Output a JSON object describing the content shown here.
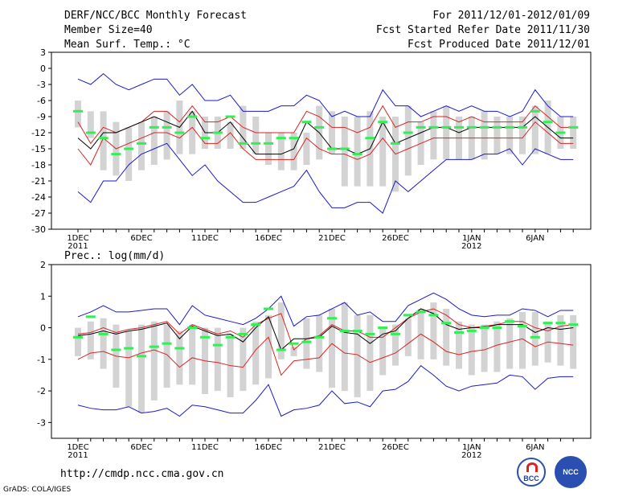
{
  "header": {
    "title": "DERF/NCC/BCC Monthly Forecast",
    "member_size": "Member Size=40",
    "variable": "Mean Surf. Temp.: °C",
    "fcst_period": "For 2011/12/01-2012/01/09",
    "fcst_start": "Fcst Started Refer Date 2011/11/30",
    "fcst_produced": "Fcst Produced Date 2011/12/01"
  },
  "footer": {
    "url": "http://cmdp.ncc.cma.gov.cn",
    "credit": "GrADS: COLA/IGES",
    "logo_bcc": "BCC",
    "logo_ncc": "NCC"
  },
  "colors": {
    "grid": "#000000",
    "box": "#d3d3d3",
    "green": "#33ee55",
    "mean": "#000000",
    "std": "#dd2222",
    "extreme": "#1a1acc"
  },
  "chart_data": [
    {
      "type": "box-ensemble",
      "panel": "temperature",
      "title": "Mean Surf. Temp.: °C",
      "ylim": [
        -30,
        3
      ],
      "yticks": [
        3,
        0,
        -3,
        -6,
        -9,
        -12,
        -15,
        -18,
        -21,
        -24,
        -27,
        -30
      ],
      "ytick_labels": [
        "3",
        "0",
        "-3",
        "-6",
        "-9",
        "-12",
        "-15",
        "-18",
        "-21",
        "-24",
        "-27",
        "-30"
      ],
      "x_tick_labels": [
        {
          "day": 1,
          "label": "1DEC",
          "sub": "2011"
        },
        {
          "day": 6,
          "label": "6DEC",
          "sub": ""
        },
        {
          "day": 11,
          "label": "11DEC",
          "sub": ""
        },
        {
          "day": 16,
          "label": "16DEC",
          "sub": ""
        },
        {
          "day": 21,
          "label": "21DEC",
          "sub": ""
        },
        {
          "day": 26,
          "label": "26DEC",
          "sub": ""
        },
        {
          "day": 32,
          "label": "1JAN",
          "sub": "2012"
        },
        {
          "day": 37,
          "label": "6JAN",
          "sub": ""
        }
      ],
      "ndays": 40,
      "box_low": [
        -11,
        -13,
        -19,
        -20,
        -21,
        -19,
        -18,
        -17,
        -16,
        -16,
        -15,
        -15,
        -15,
        -15,
        -16,
        -18,
        -19,
        -19,
        -18,
        -17,
        -16,
        -22,
        -22,
        -22,
        -22,
        -23,
        -20,
        -18,
        -17,
        -17,
        -17,
        -17,
        -17,
        -16,
        -16,
        -16,
        -16,
        -16,
        -15,
        -15
      ],
      "box_high": [
        -6,
        -8,
        -8,
        -10,
        -11,
        -10,
        -9,
        -8,
        -6,
        -8,
        -9,
        -9,
        -10,
        -7,
        -9,
        -12,
        -12,
        -12,
        -12,
        -7,
        -8,
        -9,
        -9,
        -8,
        -9,
        -9,
        -7,
        -10,
        -8,
        -7,
        -9,
        -9,
        -8,
        -9,
        -9,
        -9,
        -7,
        -6,
        -9,
        -9
      ],
      "green": [
        -8,
        -12,
        -13,
        -16,
        -15,
        -14,
        -11,
        -11,
        -12,
        -9,
        -13,
        -12,
        -9,
        -14,
        -14,
        -14,
        -13,
        -13,
        -10,
        -11,
        -15,
        -15,
        -16,
        -13,
        -10,
        -14,
        -12,
        -11,
        -11,
        -11,
        -11,
        -11,
        -11,
        -11,
        -11,
        -11,
        -8,
        -10,
        -12,
        -11
      ],
      "series": [
        {
          "name": "max",
          "role": "extreme",
          "values": [
            -2,
            -3,
            -1,
            -3,
            -4,
            -3,
            -2,
            -2,
            -5,
            -3,
            -6,
            -6,
            -5,
            -8,
            -8,
            -8,
            -7,
            -7,
            -5,
            -6,
            -9,
            -8,
            -9,
            -9,
            -4,
            -7,
            -7,
            -9,
            -8,
            -7,
            -8,
            -7,
            -8,
            -8,
            -9,
            -8,
            -4,
            -7,
            -9,
            -9
          ]
        },
        {
          "name": "mean+std",
          "role": "std",
          "values": [
            -10,
            -14,
            -11,
            -12,
            -11,
            -10,
            -8,
            -8,
            -10,
            -7,
            -10,
            -10,
            -9,
            -11,
            -12,
            -12,
            -12,
            -12,
            -8,
            -9,
            -11,
            -11,
            -12,
            -11,
            -7,
            -11,
            -10,
            -10,
            -9,
            -9,
            -10,
            -9,
            -10,
            -10,
            -10,
            -10,
            -7,
            -9,
            -11,
            -11
          ]
        },
        {
          "name": "mean",
          "role": "mean",
          "values": [
            -13,
            -15,
            -12,
            -12,
            -11,
            -10,
            -9,
            -10,
            -11,
            -8,
            -12,
            -12,
            -10,
            -13,
            -16,
            -16,
            -16,
            -15,
            -10,
            -12,
            -15,
            -15,
            -16,
            -15,
            -10,
            -14,
            -13,
            -12,
            -11,
            -11,
            -12,
            -11,
            -11,
            -11,
            -11,
            -11,
            -9,
            -11,
            -13,
            -13
          ]
        },
        {
          "name": "mean-std",
          "role": "std",
          "values": [
            -15,
            -18,
            -13,
            -15,
            -14,
            -13,
            -12,
            -12,
            -13,
            -11,
            -14,
            -14,
            -12,
            -15,
            -17,
            -17,
            -17,
            -17,
            -13,
            -15,
            -16,
            -16,
            -17,
            -16,
            -13,
            -16,
            -15,
            -14,
            -13,
            -13,
            -13,
            -13,
            -13,
            -13,
            -13,
            -13,
            -10,
            -12,
            -14,
            -14
          ]
        },
        {
          "name": "min",
          "role": "extreme",
          "values": [
            -23,
            -25,
            -21,
            -21,
            -18,
            -16,
            -15,
            -14,
            -17,
            -20,
            -18,
            -21,
            -23,
            -25,
            -25,
            -24,
            -23,
            -22,
            -19,
            -23,
            -26,
            -26,
            -25,
            -25,
            -27,
            -21,
            -23,
            -21,
            -19,
            -17,
            -17,
            -17,
            -16,
            -16,
            -15,
            -18,
            -15,
            -16,
            -17,
            -17
          ]
        }
      ]
    },
    {
      "type": "box-ensemble",
      "panel": "precipitation",
      "title": "Prec.: log(mm/d)",
      "ylim": [
        -3.5,
        2
      ],
      "yticks": [
        2,
        1,
        0,
        -1,
        -2,
        -3
      ],
      "ytick_labels": [
        "2",
        "1",
        "0",
        "-1",
        "-2",
        "-3"
      ],
      "x_tick_labels": [
        {
          "day": 1,
          "label": "1DEC",
          "sub": "2011"
        },
        {
          "day": 6,
          "label": "6DEC",
          "sub": ""
        },
        {
          "day": 11,
          "label": "11DEC",
          "sub": ""
        },
        {
          "day": 16,
          "label": "16DEC",
          "sub": ""
        },
        {
          "day": 21,
          "label": "21DEC",
          "sub": ""
        },
        {
          "day": 26,
          "label": "26DEC",
          "sub": ""
        },
        {
          "day": 32,
          "label": "1JAN",
          "sub": "2012"
        },
        {
          "day": 37,
          "label": "6JAN",
          "sub": ""
        }
      ],
      "ndays": 40,
      "box_low": [
        -0.9,
        -1.0,
        -1.3,
        -1.9,
        -2.5,
        -2.7,
        -2.3,
        -1.9,
        -1.8,
        -1.8,
        -2.1,
        -2.0,
        -2.2,
        -2.0,
        -1.8,
        -1.6,
        -1.0,
        -0.9,
        -1.3,
        -1.4,
        -1.9,
        -2.0,
        -2.2,
        -2.0,
        -1.5,
        -1.2,
        -0.9,
        -1.0,
        -1.0,
        -1.2,
        -1.3,
        -1.5,
        -1.4,
        -1.4,
        -1.3,
        -1.3,
        -1.2,
        -1.1,
        -1.2,
        -1.3
      ],
      "box_high": [
        0.0,
        0.2,
        0.3,
        0.1,
        -0.1,
        0.1,
        0.2,
        0.1,
        -0.1,
        0.1,
        0.0,
        0.0,
        -0.2,
        0.0,
        0.2,
        0.4,
        0.8,
        -0.6,
        0.3,
        0.4,
        0.6,
        0.8,
        0.4,
        0.4,
        0.0,
        0.1,
        0.3,
        0.6,
        0.8,
        0.6,
        0.2,
        0.1,
        0.1,
        0.2,
        0.3,
        0.5,
        0.5,
        0.2,
        0.4,
        0.4
      ],
      "green": [
        -0.3,
        0.35,
        -0.2,
        -0.7,
        -0.65,
        -0.9,
        -0.6,
        -0.5,
        -0.65,
        0.0,
        -0.3,
        -0.55,
        -0.3,
        -0.2,
        0.1,
        0.6,
        -0.7,
        -0.5,
        -0.45,
        -0.3,
        0.3,
        -0.1,
        -0.1,
        -0.2,
        0.0,
        -0.2,
        0.4,
        0.5,
        0.4,
        0.15,
        -0.15,
        -0.1,
        0.0,
        0.0,
        0.2,
        0.05,
        -0.3,
        0.15,
        0.15,
        0.1
      ],
      "series": [
        {
          "name": "max",
          "role": "extreme",
          "values": [
            0.35,
            0.5,
            0.7,
            0.5,
            0.5,
            0.55,
            0.6,
            0.6,
            0.1,
            0.7,
            0.4,
            0.3,
            0.2,
            0.1,
            0.3,
            0.6,
            1.0,
            0.05,
            0.35,
            0.4,
            0.6,
            0.8,
            0.4,
            0.5,
            0.2,
            0.2,
            0.7,
            0.9,
            1.1,
            0.9,
            0.6,
            0.4,
            0.35,
            0.4,
            0.4,
            0.6,
            0.55,
            0.35,
            0.55,
            0.55
          ]
        },
        {
          "name": "mean+std",
          "role": "std",
          "values": [
            -0.2,
            -0.15,
            0.0,
            -0.15,
            -0.05,
            0.0,
            0.1,
            0.2,
            -0.2,
            0.1,
            -0.05,
            -0.2,
            -0.1,
            -0.3,
            0.1,
            0.3,
            0.45,
            -0.7,
            -0.35,
            -0.25,
            0.1,
            -0.1,
            -0.1,
            -0.3,
            -0.3,
            0.0,
            0.3,
            0.5,
            0.6,
            0.4,
            0.1,
            0.0,
            0.05,
            0.1,
            0.2,
            0.2,
            0.0,
            -0.1,
            0.05,
            0.1
          ]
        },
        {
          "name": "mean",
          "role": "mean",
          "values": [
            -0.25,
            -0.2,
            -0.1,
            -0.2,
            -0.1,
            -0.05,
            0.05,
            0.15,
            -0.35,
            0.05,
            -0.1,
            -0.25,
            -0.2,
            -0.45,
            0.0,
            0.35,
            -0.7,
            -0.35,
            -0.35,
            -0.3,
            0.05,
            -0.15,
            -0.2,
            -0.5,
            -0.2,
            -0.1,
            0.3,
            0.6,
            0.45,
            0.1,
            -0.05,
            0.0,
            0.0,
            0.1,
            0.1,
            0.1,
            -0.15,
            0.0,
            -0.05,
            0.0
          ]
        },
        {
          "name": "mean-std",
          "role": "std",
          "values": [
            -1.0,
            -0.8,
            -0.75,
            -0.9,
            -0.95,
            -0.8,
            -0.7,
            -0.85,
            -1.25,
            -0.95,
            -1.05,
            -1.1,
            -1.2,
            -1.25,
            -0.7,
            -0.3,
            -1.5,
            -1.05,
            -1.0,
            -0.95,
            -0.5,
            -0.8,
            -0.85,
            -1.1,
            -0.95,
            -0.8,
            -0.5,
            -0.2,
            -0.45,
            -0.75,
            -0.85,
            -0.75,
            -0.7,
            -0.55,
            -0.45,
            -0.35,
            -0.6,
            -0.45,
            -0.5,
            -0.55
          ]
        },
        {
          "name": "min",
          "role": "extreme",
          "values": [
            -2.45,
            -2.55,
            -2.6,
            -2.6,
            -2.5,
            -2.7,
            -2.65,
            -2.55,
            -2.8,
            -2.45,
            -2.5,
            -2.6,
            -2.7,
            -2.7,
            -2.3,
            -1.8,
            -2.8,
            -2.6,
            -2.55,
            -2.45,
            -2.0,
            -2.4,
            -2.35,
            -2.5,
            -2.0,
            -1.95,
            -1.7,
            -1.2,
            -1.5,
            -1.85,
            -2.0,
            -1.85,
            -1.8,
            -1.75,
            -1.5,
            -1.55,
            -1.95,
            -1.6,
            -1.55,
            -1.55
          ]
        }
      ]
    }
  ]
}
